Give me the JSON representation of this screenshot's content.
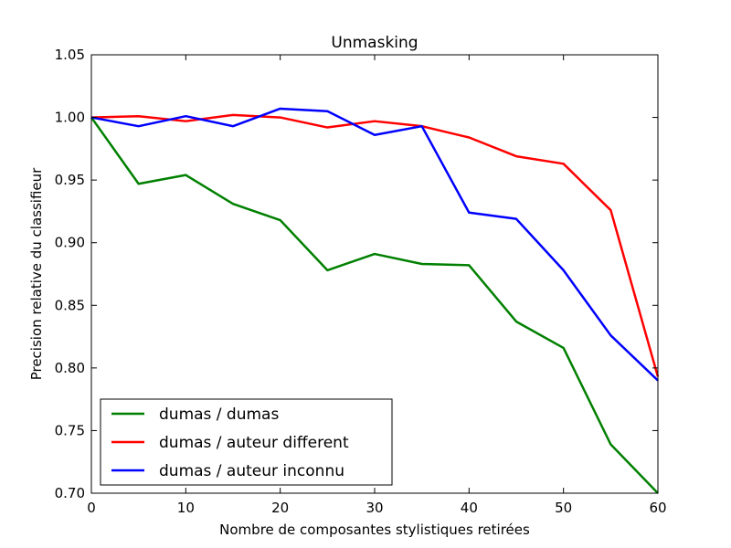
{
  "chart_data": {
    "type": "line",
    "title": "Unmasking",
    "xlabel": "Nombre de composantes stylistiques retirées",
    "ylabel": "Precision relative du classifieur",
    "xlim": [
      0,
      60
    ],
    "ylim": [
      0.7,
      1.05
    ],
    "xticks": [
      0,
      10,
      20,
      30,
      40,
      50,
      60
    ],
    "yticks": [
      0.7,
      0.75,
      0.8,
      0.85,
      0.9,
      0.95,
      1.0,
      1.05
    ],
    "xtick_labels": [
      "0",
      "10",
      "20",
      "30",
      "40",
      "50",
      "60"
    ],
    "ytick_labels": [
      "0.70",
      "0.75",
      "0.80",
      "0.85",
      "0.90",
      "0.95",
      "1.00",
      "1.05"
    ],
    "grid": false,
    "legend_position": "bottom-left",
    "x": [
      0,
      5,
      10,
      15,
      20,
      25,
      30,
      35,
      40,
      45,
      50,
      55,
      60
    ],
    "series": [
      {
        "name": "dumas / dumas",
        "color": "#008000",
        "values": [
          1.0,
          0.947,
          0.954,
          0.931,
          0.918,
          0.878,
          0.891,
          0.883,
          0.882,
          0.837,
          0.816,
          0.739,
          0.7
        ]
      },
      {
        "name": "dumas / auteur different",
        "color": "#ff0000",
        "values": [
          1.0,
          1.001,
          0.997,
          1.002,
          1.0,
          0.992,
          0.997,
          0.993,
          0.984,
          0.969,
          0.963,
          0.926,
          0.793
        ]
      },
      {
        "name": "dumas / auteur inconnu",
        "color": "#0000ff",
        "values": [
          1.0,
          0.993,
          1.001,
          0.993,
          1.007,
          1.005,
          0.986,
          0.993,
          0.924,
          0.919,
          0.878,
          0.826,
          0.79
        ]
      }
    ]
  }
}
